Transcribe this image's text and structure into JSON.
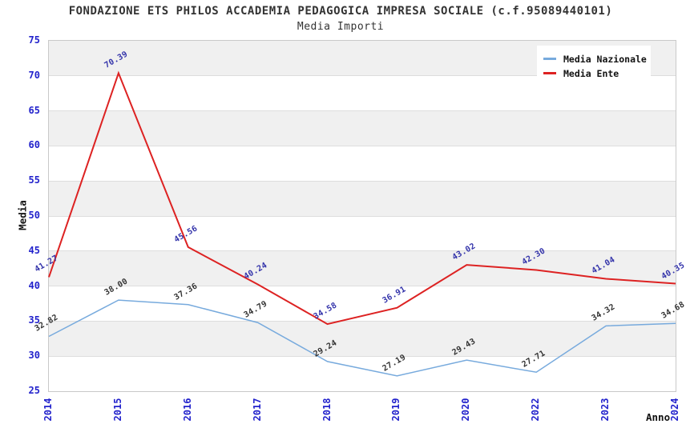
{
  "colors": {
    "tick_labels": "#2222cc",
    "band_fill": "#f0f0f0",
    "gridline": "#dddddd",
    "plot_border": "#c9c9c9",
    "title_text": "#333333"
  },
  "chart_data": {
    "type": "line",
    "title": "FONDAZIONE ETS PHILOS ACCADEMIA PEDAGOGICA IMPRESA SOCIALE (c.f.95089440101)",
    "subtitle": "Media Importi",
    "xlabel": "Anno",
    "ylabel": "Media",
    "ylim": [
      25,
      75
    ],
    "yticks": [
      75,
      70,
      65,
      60,
      55,
      50,
      45,
      40,
      35,
      30,
      25
    ],
    "grid": "horizontal-bands",
    "legend_position": "top-right",
    "categories": [
      "2014",
      "2015",
      "2016",
      "2017",
      "2018",
      "2019",
      "2020",
      "2022",
      "2023",
      "2024"
    ],
    "series": [
      {
        "name": "Media Nazionale",
        "color": "#77aadd",
        "label_color": "#333333",
        "stroke_width": 1.5,
        "values": [
          32.82,
          38.0,
          37.36,
          34.79,
          29.24,
          27.19,
          29.43,
          27.71,
          34.32,
          34.68
        ]
      },
      {
        "name": "Media Ente",
        "color": "#dd2222",
        "label_color": "#3333aa",
        "stroke_width": 2,
        "values": [
          41.27,
          70.39,
          45.56,
          40.24,
          34.58,
          36.91,
          43.02,
          42.3,
          41.04,
          40.35
        ]
      }
    ]
  }
}
